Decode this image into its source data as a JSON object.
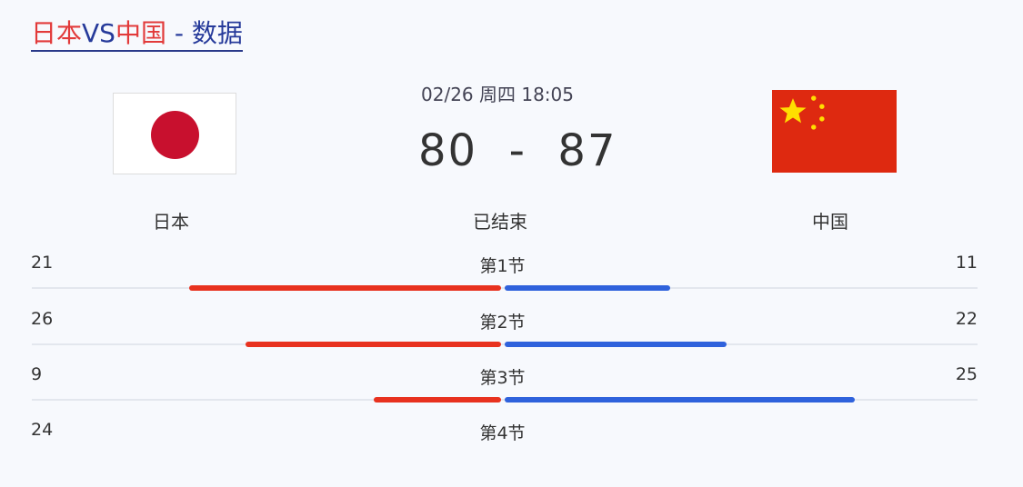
{
  "header": {
    "title_team1": "日本",
    "title_vs": "VS",
    "title_team2": "中国",
    "title_suffix": " - 数据"
  },
  "match": {
    "datetime": "02/26 周四 18:05",
    "score": "80  -  87",
    "status": "已结束",
    "home": "日本",
    "away": "中国"
  },
  "colors": {
    "home_bar": "#e8321f",
    "away_bar": "#2f62dc"
  },
  "quarters": [
    {
      "label": "第1节",
      "home": "21",
      "away": "11",
      "home_bar": 0.66,
      "away_bar": 0.35
    },
    {
      "label": "第2节",
      "home": "26",
      "away": "22",
      "home_bar": 0.54,
      "away_bar": 0.47
    },
    {
      "label": "第3节",
      "home": "9",
      "away": "25",
      "home_bar": 0.27,
      "away_bar": 0.74
    },
    {
      "label": "第4节",
      "home": "24"
    }
  ]
}
